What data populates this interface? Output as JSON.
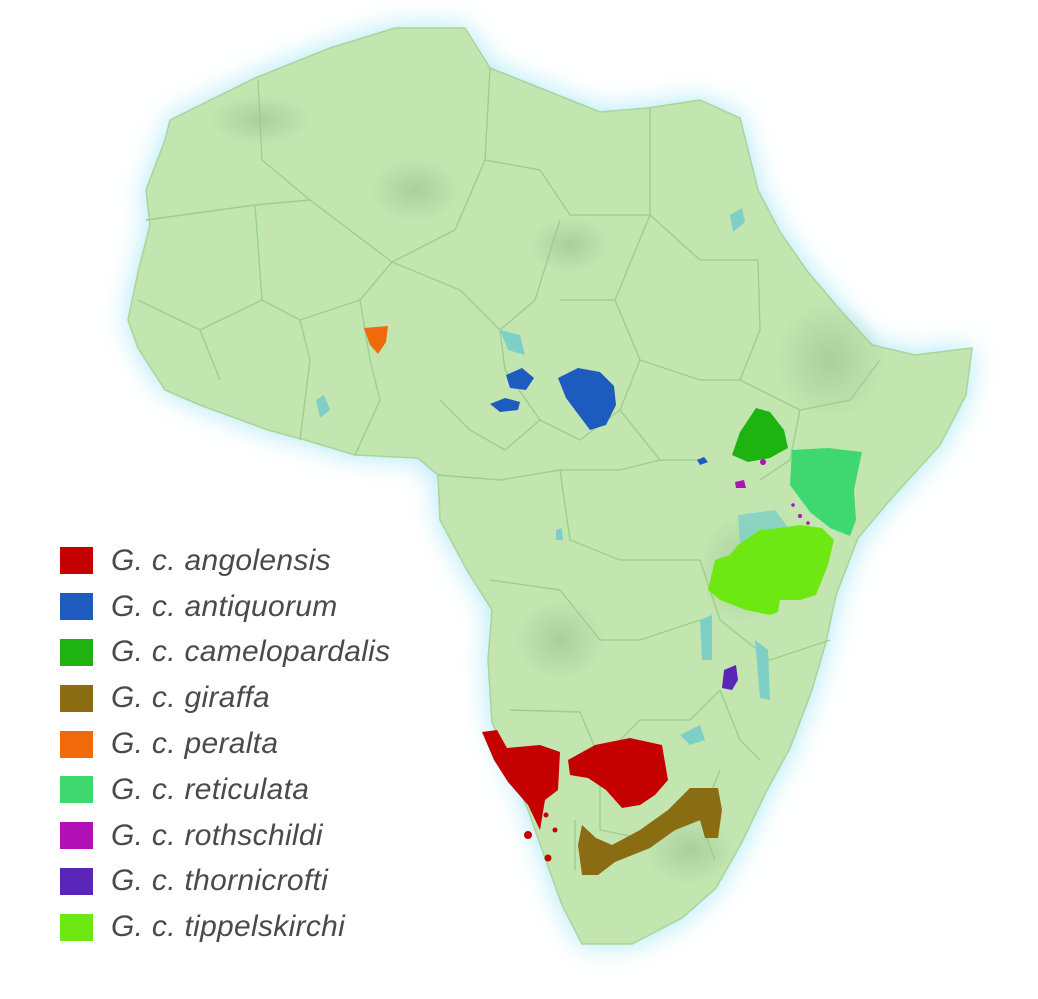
{
  "map": {
    "colors": {
      "glow": "#a6e7f6",
      "land": "#c3e6b0",
      "border": "#9ccf8e",
      "water": "#7ecfc6"
    }
  },
  "legend": {
    "items": [
      {
        "key": "angolensis",
        "label": "G. c. angolensis",
        "color": "#c40000"
      },
      {
        "key": "antiquorum",
        "label": "G. c. antiquorum",
        "color": "#1e5bbf"
      },
      {
        "key": "camelopardalis",
        "label": "G. c. camelopardalis",
        "color": "#1fb312"
      },
      {
        "key": "giraffa",
        "label": "G. c. giraffa",
        "color": "#8a6c12"
      },
      {
        "key": "peralta",
        "label": "G. c. peralta",
        "color": "#f06a0c"
      },
      {
        "key": "reticulata",
        "label": "G. c. reticulata",
        "color": "#3fd76f"
      },
      {
        "key": "rothschildi",
        "label": "G. c. rothschildi",
        "color": "#b010b6"
      },
      {
        "key": "thornicrofti",
        "label": "G. c. thornicrofti",
        "color": "#5b25b8"
      },
      {
        "key": "tippelskirchi",
        "label": "G. c. tippelskirchi",
        "color": "#6ee812"
      }
    ]
  }
}
